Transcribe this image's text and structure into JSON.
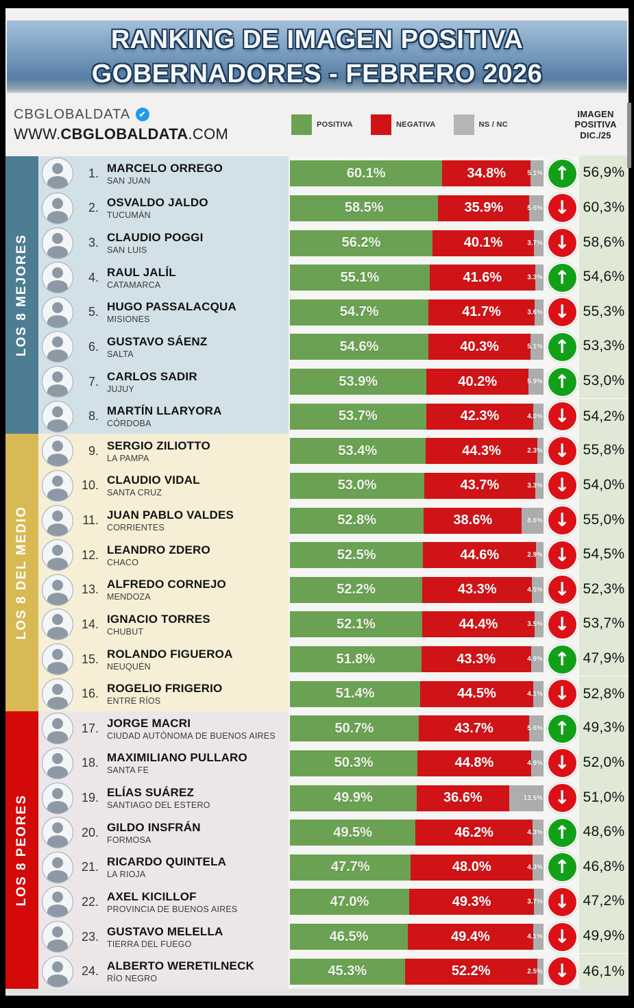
{
  "title": {
    "line1": "RANKING DE IMAGEN POSITIVA",
    "line2": "GOBERNADORES - FEBRERO 2026"
  },
  "header": {
    "brand": "CBGLOBALDATA",
    "brand_badge_icon": "verified-check",
    "brand_badge_glyph": "✔",
    "website_prefix": "WWW.",
    "website_bold": "CBGLOBALDATA",
    "website_suffix": ".COM",
    "prev_column_header": "IMAGEN POSITIVA DIC./25",
    "legend": [
      {
        "label": "POSITIVA",
        "color": "#6ba153"
      },
      {
        "label": "NEGATIVA",
        "color": "#d01317"
      },
      {
        "label": "NS / NC",
        "color": "#b5b5b5"
      }
    ]
  },
  "colors": {
    "positive": "#6ba153",
    "negative": "#d01317",
    "nsnc": "#adadad",
    "prev_column_bg": "#dfe9d6",
    "trend_up": "#12a019",
    "trend_down": "#dc1117"
  },
  "glyphs": {
    "up": "↑",
    "down": "↓"
  },
  "sections": [
    {
      "label": "LOS 8 MEJORES",
      "sidebar_color": "#4d7d92",
      "row_bg": "#d2e1e7",
      "rows": [
        {
          "rank": "1.",
          "name": "MARCELO ORREGO",
          "province": "SAN JUAN",
          "pos": 60.1,
          "neg": 34.8,
          "ns": 5.1,
          "pos_label": "60.1%",
          "neg_label": "34.8%",
          "ns_label": "5.1%",
          "trend": "up",
          "prev": "56,9%"
        },
        {
          "rank": "2.",
          "name": "OSVALDO JALDO",
          "province": "TUCUMÁN",
          "pos": 58.5,
          "neg": 35.9,
          "ns": 5.6,
          "pos_label": "58.5%",
          "neg_label": "35.9%",
          "ns_label": "5.6%",
          "trend": "down",
          "prev": "60,3%"
        },
        {
          "rank": "3.",
          "name": "CLAUDIO POGGI",
          "province": "SAN LUIS",
          "pos": 56.2,
          "neg": 40.1,
          "ns": 3.7,
          "pos_label": "56.2%",
          "neg_label": "40.1%",
          "ns_label": "3.7%",
          "trend": "down",
          "prev": "58,6%"
        },
        {
          "rank": "4.",
          "name": "RAUL JALÍL",
          "province": "CATAMARCA",
          "pos": 55.1,
          "neg": 41.6,
          "ns": 3.3,
          "pos_label": "55.1%",
          "neg_label": "41.6%",
          "ns_label": "3.3%",
          "trend": "up",
          "prev": "54,6%"
        },
        {
          "rank": "5.",
          "name": "HUGO PASSALACQUA",
          "province": "MISIONES",
          "pos": 54.7,
          "neg": 41.7,
          "ns": 3.6,
          "pos_label": "54.7%",
          "neg_label": "41.7%",
          "ns_label": "3.6%",
          "trend": "down",
          "prev": "55,3%"
        },
        {
          "rank": "6.",
          "name": "GUSTAVO SÁENZ",
          "province": "SALTA",
          "pos": 54.6,
          "neg": 40.3,
          "ns": 5.1,
          "pos_label": "54.6%",
          "neg_label": "40.3%",
          "ns_label": "5.1%",
          "trend": "up",
          "prev": "53,3%"
        },
        {
          "rank": "7.",
          "name": "CARLOS SADIR",
          "province": "JUJUY",
          "pos": 53.9,
          "neg": 40.2,
          "ns": 5.9,
          "pos_label": "53.9%",
          "neg_label": "40.2%",
          "ns_label": "5.9%",
          "trend": "up",
          "prev": "53,0%"
        },
        {
          "rank": "8.",
          "name": "MARTÍN LLARYORA",
          "province": "CÓRDOBA",
          "pos": 53.7,
          "neg": 42.3,
          "ns": 4.0,
          "pos_label": "53.7%",
          "neg_label": "42.3%",
          "ns_label": "4.0%",
          "trend": "down",
          "prev": "54,2%"
        }
      ]
    },
    {
      "label": "LOS 8 DEL MEDIO",
      "sidebar_color": "#d9b954",
      "row_bg": "#f6efd6",
      "rows": [
        {
          "rank": "9.",
          "name": "SERGIO ZILIOTTO",
          "province": "LA PAMPA",
          "pos": 53.4,
          "neg": 44.3,
          "ns": 2.3,
          "pos_label": "53.4%",
          "neg_label": "44.3%",
          "ns_label": "2.3%",
          "trend": "down",
          "prev": "55,8%"
        },
        {
          "rank": "10.",
          "name": "CLAUDIO VIDAL",
          "province": "SANTA CRUZ",
          "pos": 53.0,
          "neg": 43.7,
          "ns": 3.3,
          "pos_label": "53.0%",
          "neg_label": "43.7%",
          "ns_label": "3.3%",
          "trend": "down",
          "prev": "54,0%"
        },
        {
          "rank": "11.",
          "name": "JUAN PABLO VALDES",
          "province": "CORRIENTES",
          "pos": 52.8,
          "neg": 38.6,
          "ns": 8.6,
          "pos_label": "52.8%",
          "neg_label": "38.6%",
          "ns_label": "8.6%",
          "trend": "down",
          "prev": "55,0%"
        },
        {
          "rank": "12.",
          "name": "LEANDRO ZDERO",
          "province": "CHACO",
          "pos": 52.5,
          "neg": 44.6,
          "ns": 2.9,
          "pos_label": "52.5%",
          "neg_label": "44.6%",
          "ns_label": "2.9%",
          "trend": "down",
          "prev": "54,5%"
        },
        {
          "rank": "13.",
          "name": "ALFREDO CORNEJO",
          "province": "MENDOZA",
          "pos": 52.2,
          "neg": 43.3,
          "ns": 4.5,
          "pos_label": "52.2%",
          "neg_label": "43.3%",
          "ns_label": "4.5%",
          "trend": "down",
          "prev": "52,3%"
        },
        {
          "rank": "14.",
          "name": "IGNACIO TORRES",
          "province": "CHUBUT",
          "pos": 52.1,
          "neg": 44.4,
          "ns": 3.5,
          "pos_label": "52.1%",
          "neg_label": "44.4%",
          "ns_label": "3.5%",
          "trend": "down",
          "prev": "53,7%"
        },
        {
          "rank": "15.",
          "name": "ROLANDO FIGUEROA",
          "province": "NEUQUÉN",
          "pos": 51.8,
          "neg": 43.3,
          "ns": 4.9,
          "pos_label": "51.8%",
          "neg_label": "43.3%",
          "ns_label": "4.9%",
          "trend": "up",
          "prev": "47,9%"
        },
        {
          "rank": "16.",
          "name": "ROGELIO FRIGERIO",
          "province": "ENTRE RÍOS",
          "pos": 51.4,
          "neg": 44.5,
          "ns": 4.1,
          "pos_label": "51.4%",
          "neg_label": "44.5%",
          "ns_label": "4.1%",
          "trend": "down",
          "prev": "52,8%"
        }
      ]
    },
    {
      "label": "LOS 8 PEORES",
      "sidebar_color": "#d40a0a",
      "row_bg": "#ece6e9",
      "rows": [
        {
          "rank": "17.",
          "name": "JORGE MACRI",
          "province": "CIUDAD AUTÓNOMA DE BUENOS AIRES",
          "pos": 50.7,
          "neg": 43.7,
          "ns": 5.6,
          "pos_label": "50.7%",
          "neg_label": "43.7%",
          "ns_label": "5.6%",
          "trend": "up",
          "prev": "49,3%"
        },
        {
          "rank": "18.",
          "name": "MAXIMILIANO PULLARO",
          "province": "SANTA FE",
          "pos": 50.3,
          "neg": 44.8,
          "ns": 4.9,
          "pos_label": "50.3%",
          "neg_label": "44.8%",
          "ns_label": "4.9%",
          "trend": "down",
          "prev": "52,0%"
        },
        {
          "rank": "19.",
          "name": "ELÍAS SUÁREZ",
          "province": "SANTIAGO DEL ESTERO",
          "pos": 49.9,
          "neg": 36.6,
          "ns": 13.5,
          "pos_label": "49.9%",
          "neg_label": "36.6%",
          "ns_label": "13.5%",
          "trend": "down",
          "prev": "51,0%"
        },
        {
          "rank": "20.",
          "name": "GILDO INSFRÁN",
          "province": "FORMOSA",
          "pos": 49.5,
          "neg": 46.2,
          "ns": 4.3,
          "pos_label": "49.5%",
          "neg_label": "46.2%",
          "ns_label": "4.3%",
          "trend": "up",
          "prev": "48,6%"
        },
        {
          "rank": "21.",
          "name": "RICARDO QUINTELA",
          "province": "LA RIOJA",
          "pos": 47.7,
          "neg": 48.0,
          "ns": 4.3,
          "pos_label": "47.7%",
          "neg_label": "48.0%",
          "ns_label": "4.3%",
          "trend": "up",
          "prev": "46,8%"
        },
        {
          "rank": "22.",
          "name": "AXEL KICILLOF",
          "province": "PROVINCIA DE BUENOS AIRES",
          "pos": 47.0,
          "neg": 49.3,
          "ns": 3.7,
          "pos_label": "47.0%",
          "neg_label": "49.3%",
          "ns_label": "3.7%",
          "trend": "down",
          "prev": "47,2%"
        },
        {
          "rank": "23.",
          "name": "GUSTAVO MELELLA",
          "province": "TIERRA DEL FUEGO",
          "pos": 46.5,
          "neg": 49.4,
          "ns": 4.1,
          "pos_label": "46.5%",
          "neg_label": "49.4%",
          "ns_label": "4.1%",
          "trend": "down",
          "prev": "49,9%"
        },
        {
          "rank": "24.",
          "name": "ALBERTO WERETILNECK",
          "province": "RÍO NEGRO",
          "pos": 45.3,
          "neg": 52.2,
          "ns": 2.5,
          "pos_label": "45.3%",
          "neg_label": "52.2%",
          "ns_label": "2.5%",
          "trend": "down",
          "prev": "46,1%"
        }
      ]
    }
  ],
  "chart_data": {
    "type": "bar",
    "subtype": "horizontal-stacked-ranking",
    "title": "RANKING DE IMAGEN POSITIVA GOBERNADORES - FEBRERO 2026",
    "legend_position": "top",
    "xlim": [
      0,
      100
    ],
    "categories": [
      "MARCELO ORREGO (SAN JUAN)",
      "OSVALDO JALDO (TUCUMÁN)",
      "CLAUDIO POGGI (SAN LUIS)",
      "RAUL JALÍL (CATAMARCA)",
      "HUGO PASSALACQUA (MISIONES)",
      "GUSTAVO SÁENZ (SALTA)",
      "CARLOS SADIR (JUJUY)",
      "MARTÍN LLARYORA (CÓRDOBA)",
      "SERGIO ZILIOTTO (LA PAMPA)",
      "CLAUDIO VIDAL (SANTA CRUZ)",
      "JUAN PABLO VALDES (CORRIENTES)",
      "LEANDRO ZDERO (CHACO)",
      "ALFREDO CORNEJO (MENDOZA)",
      "IGNACIO TORRES (CHUBUT)",
      "ROLANDO FIGUEROA (NEUQUÉN)",
      "ROGELIO FRIGERIO (ENTRE RÍOS)",
      "JORGE MACRI (CIUDAD AUTÓNOMA DE BUENOS AIRES)",
      "MAXIMILIANO PULLARO (SANTA FE)",
      "ELÍAS SUÁREZ (SANTIAGO DEL ESTERO)",
      "GILDO INSFRÁN (FORMOSA)",
      "RICARDO QUINTELA (LA RIOJA)",
      "AXEL KICILLOF (PROVINCIA DE BUENOS AIRES)",
      "GUSTAVO MELELLA (TIERRA DEL FUEGO)",
      "ALBERTO WERETILNECK (RÍO NEGRO)"
    ],
    "series": [
      {
        "name": "POSITIVA",
        "color": "#6ba153",
        "values": [
          60.1,
          58.5,
          56.2,
          55.1,
          54.7,
          54.6,
          53.9,
          53.7,
          53.4,
          53.0,
          52.8,
          52.5,
          52.2,
          52.1,
          51.8,
          51.4,
          50.7,
          50.3,
          49.9,
          49.5,
          47.7,
          47.0,
          46.5,
          45.3
        ]
      },
      {
        "name": "NEGATIVA",
        "color": "#d01317",
        "values": [
          34.8,
          35.9,
          40.1,
          41.6,
          41.7,
          40.3,
          40.2,
          42.3,
          44.3,
          43.7,
          38.6,
          44.6,
          43.3,
          44.4,
          43.3,
          44.5,
          43.7,
          44.8,
          36.6,
          46.2,
          48.0,
          49.3,
          49.4,
          52.2
        ]
      },
      {
        "name": "NS / NC",
        "color": "#adadad",
        "values": [
          5.1,
          5.6,
          3.7,
          3.3,
          3.6,
          5.1,
          5.9,
          4.0,
          2.3,
          3.3,
          8.6,
          2.9,
          4.5,
          3.5,
          4.9,
          4.1,
          5.6,
          4.9,
          13.5,
          4.3,
          4.3,
          3.7,
          4.1,
          2.5
        ]
      }
    ],
    "extra_column": {
      "header": "IMAGEN POSITIVA DIC./25",
      "values": [
        "56,9%",
        "60,3%",
        "58,6%",
        "54,6%",
        "55,3%",
        "53,3%",
        "53,0%",
        "54,2%",
        "55,8%",
        "54,0%",
        "55,0%",
        "54,5%",
        "52,3%",
        "53,7%",
        "47,9%",
        "52,8%",
        "49,3%",
        "52,0%",
        "51,0%",
        "48,6%",
        "46,8%",
        "47,2%",
        "49,9%",
        "46,1%"
      ]
    },
    "trend_vs_previous": [
      "up",
      "down",
      "down",
      "up",
      "down",
      "up",
      "up",
      "down",
      "down",
      "down",
      "down",
      "down",
      "down",
      "down",
      "up",
      "down",
      "up",
      "down",
      "down",
      "up",
      "up",
      "down",
      "down",
      "down"
    ],
    "groups": [
      {
        "label": "LOS 8 MEJORES",
        "rows": [
          1,
          8
        ]
      },
      {
        "label": "LOS 8 DEL MEDIO",
        "rows": [
          9,
          16
        ]
      },
      {
        "label": "LOS 8 PEORES",
        "rows": [
          17,
          24
        ]
      }
    ]
  }
}
